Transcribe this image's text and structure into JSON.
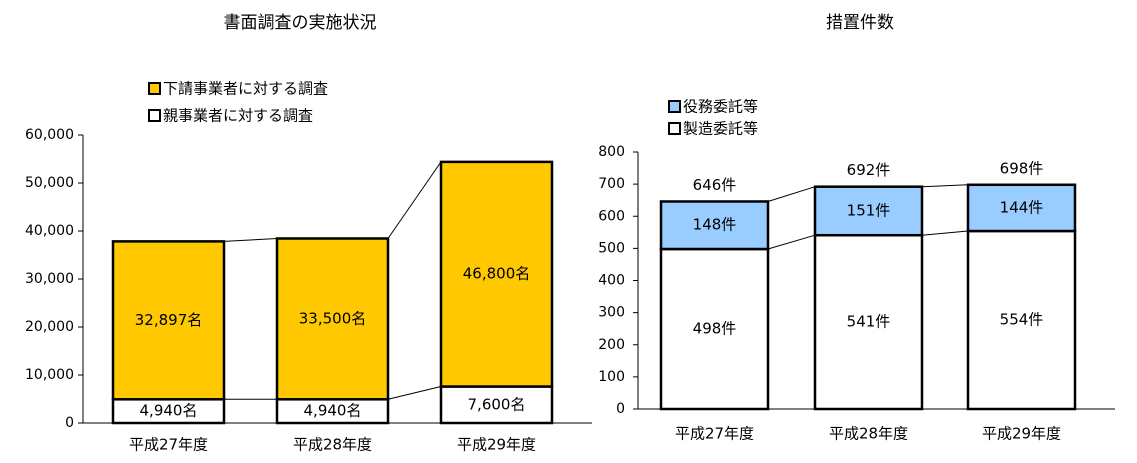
{
  "chart_data": [
    {
      "type": "bar",
      "stacked": true,
      "title": "書面調査の実施状況",
      "categories": [
        "平成27年度",
        "平成28年度",
        "平成29年度"
      ],
      "series": [
        {
          "name": "親事業者に対する調査",
          "values": [
            4940,
            4940,
            7600
          ],
          "labels": [
            "4,940名",
            "4,940名",
            "7,600名"
          ],
          "color": "#ffffff"
        },
        {
          "name": "下請事業者に対する調査",
          "values": [
            32897,
            33500,
            46800
          ],
          "labels": [
            "32,897名",
            "33,500名",
            "46,800名"
          ],
          "color": "#ffc800"
        }
      ],
      "ylim": [
        0,
        60000
      ],
      "yticks": [
        "0",
        "10,000",
        "20,000",
        "30,000",
        "40,000",
        "50,000",
        "60,000"
      ],
      "legend_order": [
        "下請事業者に対する調査",
        "親事業者に対する調査"
      ],
      "legend_position": "top",
      "grid": false
    },
    {
      "type": "bar",
      "stacked": true,
      "title": "措置件数",
      "categories": [
        "平成27年度",
        "平成28年度",
        "平成29年度"
      ],
      "series": [
        {
          "name": "製造委託等",
          "values": [
            498,
            541,
            554
          ],
          "labels": [
            "498件",
            "541件",
            "554件"
          ],
          "color": "#ffffff"
        },
        {
          "name": "役務委託等",
          "values": [
            148,
            151,
            144
          ],
          "labels": [
            "148件",
            "151件",
            "144件"
          ],
          "color": "#99ccff"
        }
      ],
      "totals": [
        "646件",
        "692件",
        "698件"
      ],
      "ylim": [
        0,
        800
      ],
      "yticks": [
        "0",
        "100",
        "200",
        "300",
        "400",
        "500",
        "600",
        "700",
        "800"
      ],
      "legend_order": [
        "役務委託等",
        "製造委託等"
      ],
      "legend_position": "top-left",
      "grid": false
    }
  ]
}
